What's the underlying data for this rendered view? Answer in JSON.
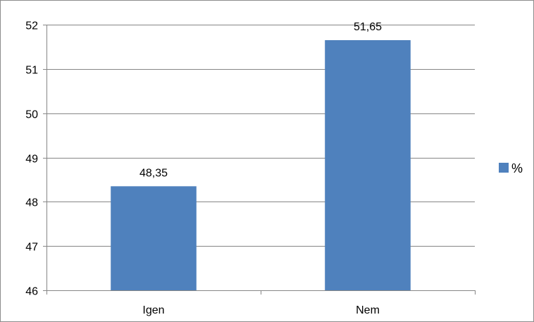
{
  "chart_data": {
    "type": "bar",
    "categories": [
      "Igen",
      "Nem"
    ],
    "series": [
      {
        "name": "%",
        "values": [
          48.35,
          51.65
        ],
        "color": "#4f81bd"
      }
    ],
    "data_labels": [
      "48,35",
      "51,65"
    ],
    "title": "",
    "xlabel": "",
    "ylabel": "",
    "ylim": [
      46,
      52
    ],
    "yticks": [
      46,
      47,
      48,
      49,
      50,
      51,
      52
    ],
    "grid": true,
    "legend": "right"
  }
}
